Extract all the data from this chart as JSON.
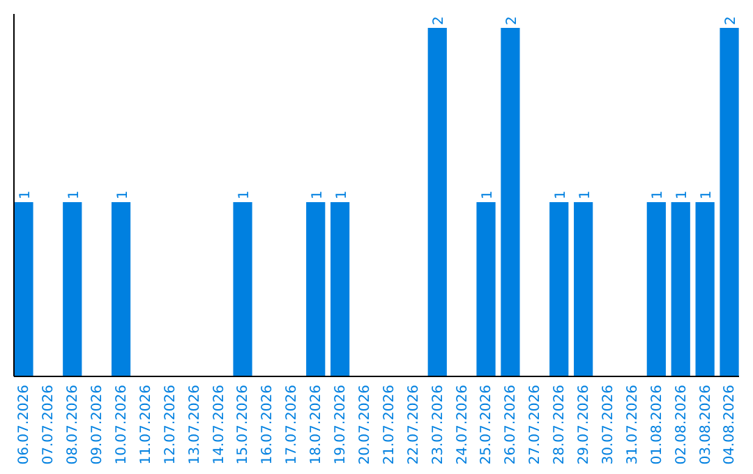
{
  "chart_data": {
    "type": "bar",
    "categories": [
      "06.07.2026",
      "07.07.2026",
      "08.07.2026",
      "09.07.2026",
      "10.07.2026",
      "11.07.2026",
      "12.07.2026",
      "13.07.2026",
      "14.07.2026",
      "15.07.2026",
      "16.07.2026",
      "17.07.2026",
      "18.07.2026",
      "19.07.2026",
      "20.07.2026",
      "21.07.2026",
      "22.07.2026",
      "23.07.2026",
      "24.07.2026",
      "25.07.2026",
      "26.07.2026",
      "27.07.2026",
      "28.07.2026",
      "29.07.2026",
      "30.07.2026",
      "31.07.2026",
      "01.08.2026",
      "02.08.2026",
      "03.08.2026",
      "04.08.2026"
    ],
    "values": [
      1,
      0,
      1,
      0,
      1,
      0,
      0,
      0,
      0,
      1,
      0,
      0,
      1,
      1,
      0,
      0,
      0,
      2,
      0,
      1,
      2,
      0,
      1,
      1,
      0,
      0,
      1,
      1,
      1,
      2
    ],
    "value_labels": [
      "1",
      null,
      "1",
      null,
      "1",
      null,
      null,
      null,
      null,
      "1",
      null,
      null,
      "1",
      "1",
      null,
      null,
      null,
      "2",
      null,
      "1",
      "2",
      null,
      "1",
      "1",
      null,
      null,
      "1",
      "1",
      "1",
      "2"
    ],
    "color": "#0080e0",
    "ylim": [
      0,
      2
    ],
    "tick_labels": "x"
  }
}
